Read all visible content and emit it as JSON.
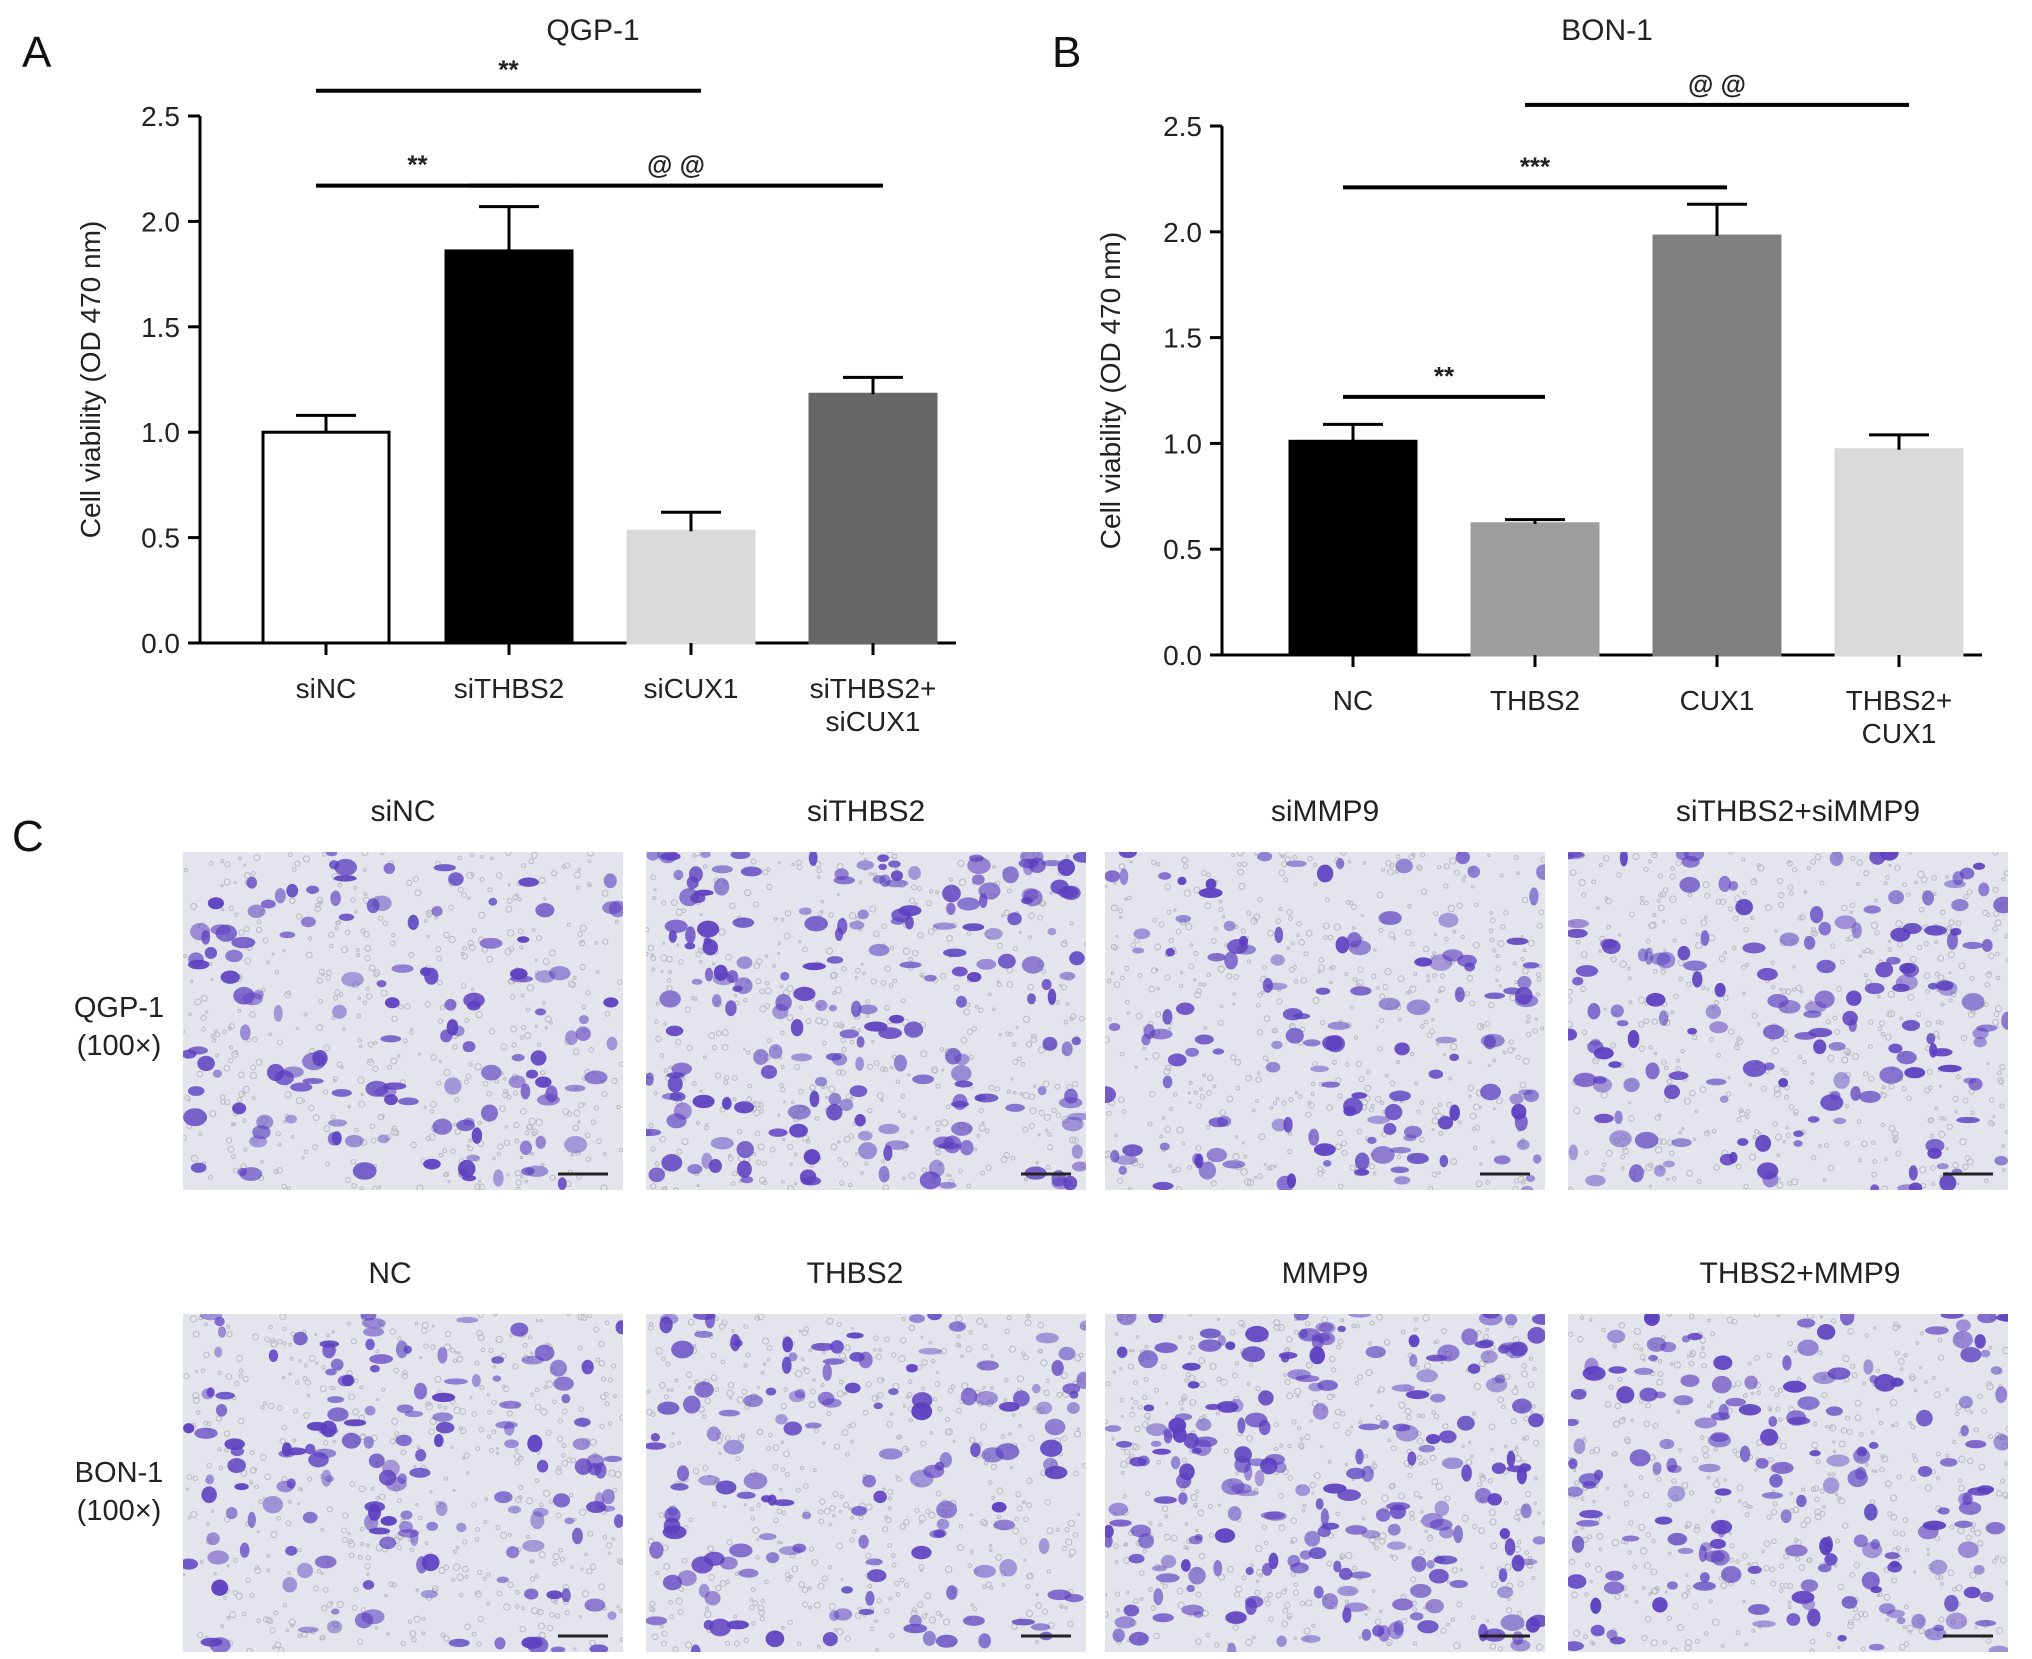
{
  "panel_labels": {
    "a": "A",
    "b": "B",
    "c": "C"
  },
  "chart_data": [
    {
      "type": "bar",
      "title": "QGP-1",
      "ylabel": "Cell viability (OD 470 nm)",
      "ylim": [
        0,
        2.5
      ],
      "yticks": [
        "0.0",
        "0.5",
        "1.0",
        "1.5",
        "2.0",
        "2.5"
      ],
      "categories": [
        [
          "siNC"
        ],
        [
          "siTHBS2"
        ],
        [
          "siCUX1"
        ],
        [
          "siTHBS2+",
          "siCUX1"
        ]
      ],
      "values": [
        1.0,
        1.86,
        0.53,
        1.18
      ],
      "errors": [
        0.08,
        0.21,
        0.09,
        0.08
      ],
      "bar_colors": [
        "#ffffff",
        "#000000",
        "#d9d9d9",
        "#666666"
      ],
      "bar_strokes": [
        "#000000",
        "#000000",
        "#d9d9d9",
        "#666666"
      ],
      "annotations": [
        {
          "label": "**",
          "from": 0,
          "to": 2,
          "y": 2.62
        },
        {
          "label": "**",
          "from": 0,
          "to": 1,
          "y": 2.17
        },
        {
          "label": "@ @",
          "from": 1,
          "to": 3,
          "y": 2.17
        }
      ],
      "grid": false
    },
    {
      "type": "bar",
      "title": "BON-1",
      "ylabel": "Cell viability (OD 470 nm)",
      "ylim": [
        0,
        2.5
      ],
      "yticks": [
        "0.0",
        "0.5",
        "1.0",
        "1.5",
        "2.0",
        "2.5"
      ],
      "categories": [
        [
          "NC"
        ],
        [
          "THBS2"
        ],
        [
          "CUX1"
        ],
        [
          "THBS2+",
          "CUX1"
        ]
      ],
      "values": [
        1.01,
        0.62,
        1.98,
        0.97
      ],
      "errors": [
        0.08,
        0.02,
        0.15,
        0.07
      ],
      "bar_colors": [
        "#000000",
        "#9d9d9d",
        "#808080",
        "#d9d9d9"
      ],
      "bar_strokes": [
        "#000000",
        "#9d9d9d",
        "#808080",
        "#d9d9d9"
      ],
      "annotations": [
        {
          "label": "@ @",
          "from": 1,
          "to": 3,
          "y": 2.6
        },
        {
          "label": "***",
          "from": 0,
          "to": 2,
          "y": 2.21
        },
        {
          "label": "**",
          "from": 0,
          "to": 1,
          "y": 1.22
        }
      ],
      "grid": false
    }
  ],
  "micrographs": {
    "row_labels": [
      "QGP-1\n(100×)",
      "BON-1\n(100×)"
    ],
    "rows": [
      {
        "labels": [
          "siNC",
          "siTHBS2",
          "siMMP9",
          "siTHBS2+siMMP9"
        ],
        "cell_density": [
          0.45,
          0.85,
          0.45,
          0.6
        ]
      },
      {
        "labels": [
          "NC",
          "THBS2",
          "MMP9",
          "THBS2+MMP9"
        ],
        "cell_density": [
          0.6,
          0.5,
          1.0,
          0.7
        ]
      }
    ],
    "stain_color": "#5a3fc0",
    "background_color": "#e4e4ec"
  }
}
